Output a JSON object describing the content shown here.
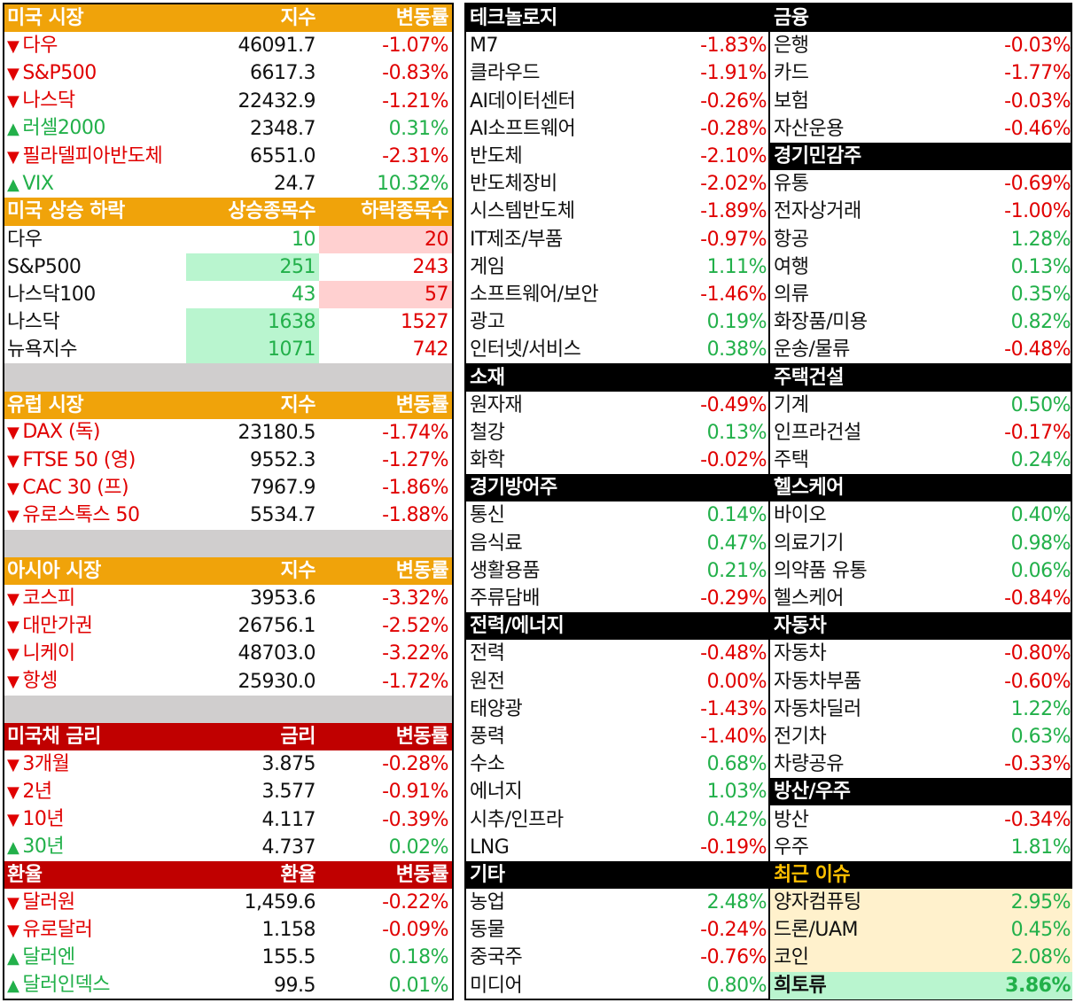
{
  "us_market": {
    "header": [
      "미국 시장",
      "지수",
      "변동률"
    ],
    "rows": [
      {
        "name": "다우",
        "value": "46091.7",
        "change": "-1.07%",
        "dir": "down"
      },
      {
        "name": "S&P500",
        "value": "6617.3",
        "change": "-0.83%",
        "dir": "down"
      },
      {
        "name": "나스닥",
        "value": "22432.9",
        "change": "-1.21%",
        "dir": "down"
      },
      {
        "name": "러셀2000",
        "value": "2348.7",
        "change": "0.31%",
        "dir": "up"
      },
      {
        "name": "필라델피아반도체",
        "value": "6551.0",
        "change": "-2.31%",
        "dir": "down"
      },
      {
        "name": "VIX",
        "value": "24.7",
        "change": "10.32%",
        "dir": "up"
      }
    ]
  },
  "us_breadth": {
    "header": [
      "미국 상승 하락",
      "상승종목수",
      "하락종목수"
    ],
    "rows": [
      {
        "name": "다우",
        "up": "10",
        "down": "20",
        "hl": "down"
      },
      {
        "name": "S&P500",
        "up": "251",
        "down": "243",
        "hl": "up"
      },
      {
        "name": "나스닥100",
        "up": "43",
        "down": "57",
        "hl": "down"
      },
      {
        "name": "나스닥",
        "up": "1638",
        "down": "1527",
        "hl": "up"
      },
      {
        "name": "뉴욕지수",
        "up": "1071",
        "down": "742",
        "hl": "up"
      }
    ]
  },
  "europe": {
    "header": [
      "유럽 시장",
      "지수",
      "변동률"
    ],
    "rows": [
      {
        "name": "DAX (독)",
        "value": "23180.5",
        "change": "-1.74%",
        "dir": "down"
      },
      {
        "name": "FTSE 50 (영)",
        "value": "9552.3",
        "change": "-1.27%",
        "dir": "down"
      },
      {
        "name": "CAC 30 (프)",
        "value": "7967.9",
        "change": "-1.86%",
        "dir": "down"
      },
      {
        "name": "유로스톡스 50",
        "value": "5534.7",
        "change": "-1.88%",
        "dir": "down"
      }
    ]
  },
  "asia": {
    "header": [
      "아시아 시장",
      "지수",
      "변동률"
    ],
    "rows": [
      {
        "name": "코스피",
        "value": "3953.6",
        "change": "-3.32%",
        "dir": "down"
      },
      {
        "name": "대만가권",
        "value": "26756.1",
        "change": "-2.52%",
        "dir": "down"
      },
      {
        "name": "니케이",
        "value": "48703.0",
        "change": "-3.22%",
        "dir": "down"
      },
      {
        "name": "항셍",
        "value": "25930.0",
        "change": "-1.72%",
        "dir": "down"
      }
    ]
  },
  "treasury": {
    "header": [
      "미국채 금리",
      "금리",
      "변동률"
    ],
    "rows": [
      {
        "name": "3개월",
        "value": "3.875",
        "change": "-0.28%",
        "dir": "down"
      },
      {
        "name": "2년",
        "value": "3.577",
        "change": "-0.91%",
        "dir": "down"
      },
      {
        "name": "10년",
        "value": "4.117",
        "change": "-0.39%",
        "dir": "down"
      },
      {
        "name": "30년",
        "value": "4.737",
        "change": "0.02%",
        "dir": "up"
      }
    ]
  },
  "fx": {
    "header": [
      "환율",
      "환율",
      "변동률"
    ],
    "rows": [
      {
        "name": "달러원",
        "value": "1,459.6",
        "change": "-0.22%",
        "dir": "down"
      },
      {
        "name": "유로달러",
        "value": "1.158",
        "change": "-0.09%",
        "dir": "down"
      },
      {
        "name": "달러엔",
        "value": "155.5",
        "change": "0.18%",
        "dir": "up"
      },
      {
        "name": "달러인덱스",
        "value": "99.5",
        "change": "0.01%",
        "dir": "up"
      }
    ]
  },
  "arrows": {
    "down": "▼",
    "up": "▲"
  },
  "sectors_left": [
    {
      "title": "테크놀로지",
      "items": [
        [
          "M7",
          "-1.83%"
        ],
        [
          "클라우드",
          "-1.91%"
        ],
        [
          "AI데이터센터",
          "-0.26%"
        ],
        [
          "AI소프트웨어",
          "-0.28%"
        ],
        [
          "반도체",
          "-2.10%"
        ],
        [
          "반도체장비",
          "-2.02%"
        ],
        [
          "시스템반도체",
          "-1.89%"
        ],
        [
          "IT제조/부품",
          "-0.97%"
        ],
        [
          "게임",
          "1.11%"
        ],
        [
          "소프트웨어/보안",
          "-1.46%"
        ],
        [
          "광고",
          "0.19%"
        ],
        [
          "인터넷/서비스",
          "0.38%"
        ]
      ]
    },
    {
      "title": "소재",
      "items": [
        [
          "원자재",
          "-0.49%"
        ],
        [
          "철강",
          "0.13%"
        ],
        [
          "화학",
          "-0.02%"
        ]
      ]
    },
    {
      "title": "경기방어주",
      "items": [
        [
          "통신",
          "0.14%"
        ],
        [
          "음식료",
          "0.47%"
        ],
        [
          "생활용품",
          "0.21%"
        ],
        [
          "주류담배",
          "-0.29%"
        ]
      ]
    },
    {
      "title": "전력/에너지",
      "items": [
        [
          "전력",
          "-0.48%"
        ],
        [
          "원전",
          "0.00%"
        ],
        [
          "태양광",
          "-1.43%"
        ],
        [
          "풍력",
          "-1.40%"
        ],
        [
          "수소",
          "0.68%"
        ],
        [
          "에너지",
          "1.03%"
        ],
        [
          "시추/인프라",
          "0.42%"
        ],
        [
          "LNG",
          "-0.19%"
        ]
      ]
    },
    {
      "title": "기타",
      "items": [
        [
          "농업",
          "2.48%"
        ],
        [
          "동물",
          "-0.24%"
        ],
        [
          "중국주",
          "-0.76%"
        ],
        [
          "미디어",
          "0.80%"
        ]
      ]
    }
  ],
  "sectors_right": [
    {
      "title": "금융",
      "items": [
        [
          "은행",
          "-0.03%"
        ],
        [
          "카드",
          "-1.77%"
        ],
        [
          "보험",
          "-0.03%"
        ],
        [
          "자산운용",
          "-0.46%"
        ]
      ]
    },
    {
      "title": "경기민감주",
      "items": [
        [
          "유통",
          "-0.69%"
        ],
        [
          "전자상거래",
          "-1.00%"
        ],
        [
          "항공",
          "1.28%"
        ],
        [
          "여행",
          "0.13%"
        ],
        [
          "의류",
          "0.35%"
        ],
        [
          "화장품/미용",
          "0.82%"
        ],
        [
          "운송/물류",
          "-0.48%"
        ]
      ]
    },
    {
      "title": "주택건설",
      "items": [
        [
          "기계",
          "0.50%"
        ],
        [
          "인프라건설",
          "-0.17%"
        ],
        [
          "주택",
          "0.24%"
        ]
      ]
    },
    {
      "title": "헬스케어",
      "items": [
        [
          "바이오",
          "0.40%"
        ],
        [
          "의료기기",
          "0.98%"
        ],
        [
          "의약품 유통",
          "0.06%"
        ],
        [
          "헬스케어",
          "-0.84%"
        ]
      ]
    },
    {
      "title": "자동차",
      "items": [
        [
          "자동차",
          "-0.80%"
        ],
        [
          "자동차부품",
          "-0.60%"
        ],
        [
          "자동차딜러",
          "1.22%"
        ],
        [
          "전기차",
          "0.63%"
        ],
        [
          "차량공유",
          "-0.33%"
        ]
      ]
    },
    {
      "title": "방산/우주",
      "items": [
        [
          "방산",
          "-0.34%"
        ],
        [
          "우주",
          "1.81%"
        ]
      ]
    },
    {
      "title": "최근 이슈",
      "gold": true,
      "items": [
        [
          "양자컴퓨팅",
          "2.95%"
        ],
        [
          "드론/UAM",
          "0.45%"
        ],
        [
          "코인",
          "2.08%"
        ],
        [
          "희토류",
          "3.86%"
        ]
      ]
    }
  ],
  "colors": {
    "orange": "#f0a30a",
    "red_header": "#c00000",
    "down": "#e00000",
    "up": "#22b04a",
    "gold": "#ffc000"
  }
}
